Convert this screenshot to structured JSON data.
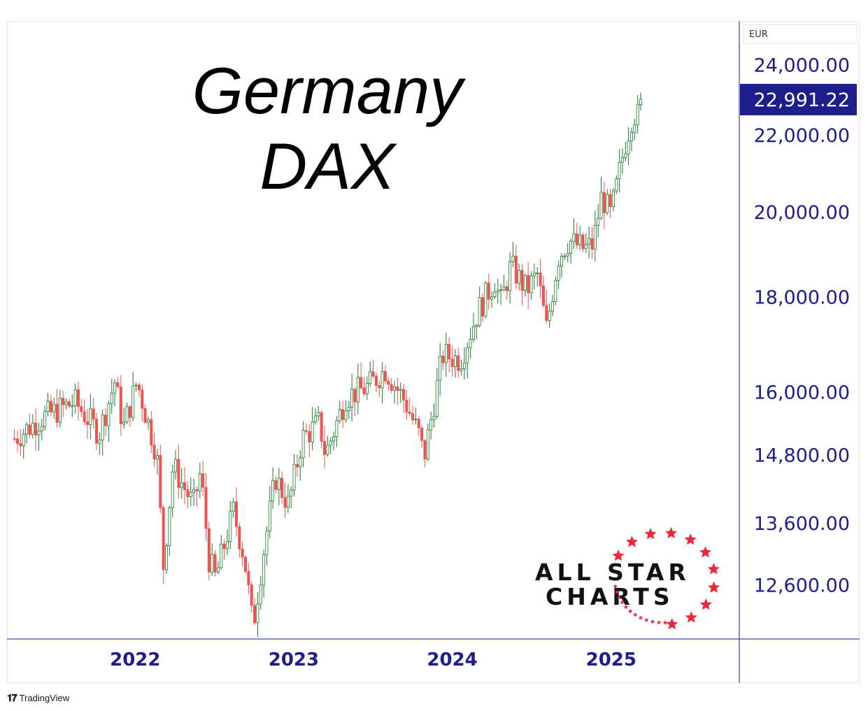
{
  "chart_data": {
    "type": "candlestick",
    "title_line1": "Germany",
    "title_line2": "DAX",
    "currency": "EUR",
    "y_scale": "log",
    "last_price": "22,991.22",
    "last_price_value": 22991.22,
    "y_ticks": [
      {
        "value": 24000,
        "label": "24,000.00"
      },
      {
        "value": 22000,
        "label": "22,000.00"
      },
      {
        "value": 20000,
        "label": "20,000.00"
      },
      {
        "value": 18000,
        "label": "18,000.00"
      },
      {
        "value": 16000,
        "label": "16,000.00"
      },
      {
        "value": 14800,
        "label": "14,800.00"
      },
      {
        "value": 13600,
        "label": "13,600.00"
      },
      {
        "value": 12600,
        "label": "12,600.00"
      }
    ],
    "x_ticks": [
      {
        "date": "2022-01-01",
        "label": "2022"
      },
      {
        "date": "2023-01-01",
        "label": "2023"
      },
      {
        "date": "2024-01-01",
        "label": "2024"
      },
      {
        "date": "2025-01-01",
        "label": "2025"
      }
    ],
    "x_range": [
      "2021-03-15",
      "2025-10-15"
    ],
    "y_range": [
      11800,
      25200
    ],
    "trend_points": [
      [
        "2021-03-29",
        15100
      ],
      [
        "2021-06-01",
        15500
      ],
      [
        "2021-08-15",
        15800
      ],
      [
        "2021-10-10",
        15200
      ],
      [
        "2021-11-15",
        16200
      ],
      [
        "2021-12-05",
        15300
      ],
      [
        "2022-01-05",
        16200
      ],
      [
        "2022-02-20",
        14800
      ],
      [
        "2022-03-07",
        12900
      ],
      [
        "2022-03-29",
        14600
      ],
      [
        "2022-05-15",
        13900
      ],
      [
        "2022-06-01",
        14500
      ],
      [
        "2022-06-20",
        13000
      ],
      [
        "2022-07-05",
        12700
      ],
      [
        "2022-08-15",
        13800
      ],
      [
        "2022-09-10",
        13000
      ],
      [
        "2022-09-29",
        11950
      ],
      [
        "2022-10-25",
        13200
      ],
      [
        "2022-11-20",
        14400
      ],
      [
        "2022-12-20",
        13900
      ],
      [
        "2023-01-20",
        15100
      ],
      [
        "2023-03-01",
        15400
      ],
      [
        "2023-03-15",
        14800
      ],
      [
        "2023-05-01",
        15900
      ],
      [
        "2023-06-20",
        16100
      ],
      [
        "2023-07-31",
        16450
      ],
      [
        "2023-09-15",
        15800
      ],
      [
        "2023-10-20",
        15100
      ],
      [
        "2023-10-27",
        14700
      ],
      [
        "2023-12-10",
        16750
      ],
      [
        "2024-01-20",
        16650
      ],
      [
        "2024-03-01",
        17700
      ],
      [
        "2024-04-10",
        18400
      ],
      [
        "2024-04-20",
        17800
      ],
      [
        "2024-05-15",
        18700
      ],
      [
        "2024-06-20",
        18150
      ],
      [
        "2024-07-15",
        18500
      ],
      [
        "2024-08-05",
        17300
      ],
      [
        "2024-09-01",
        18900
      ],
      [
        "2024-09-25",
        19300
      ],
      [
        "2024-10-31",
        19100
      ],
      [
        "2024-11-20",
        19200
      ],
      [
        "2024-12-10",
        20400
      ],
      [
        "2024-12-31",
        19900
      ],
      [
        "2025-02-01",
        21700
      ],
      [
        "2025-02-20",
        22600
      ],
      [
        "2025-03-05",
        22500
      ],
      [
        "2025-03-14",
        22991
      ]
    ],
    "colors": {
      "up": "#1a7a2c",
      "down": "#ef5350",
      "axis": "#1d1d8c",
      "last_price_bg": "#1d1d8c"
    }
  },
  "logo": {
    "line1": "ALL STAR",
    "line2": "CHARTS"
  },
  "footer": {
    "brand": "TradingView",
    "icon": "tradingview-logo-icon"
  }
}
